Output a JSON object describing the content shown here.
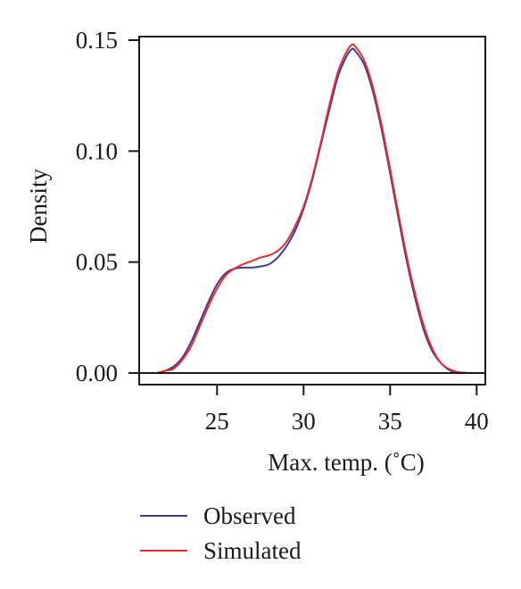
{
  "chart_data": {
    "type": "line",
    "title": "",
    "xlabel": "Max. temp. (˚C)",
    "ylabel": "Density",
    "xlim": [
      20.5,
      40.5
    ],
    "ylim": [
      0,
      0.15
    ],
    "xticks": [
      25,
      30,
      35,
      40
    ],
    "xtick_labels": [
      "25",
      "30",
      "35",
      "40"
    ],
    "yticks": [
      0,
      0.05,
      0.1,
      0.15
    ],
    "ytick_labels": [
      "0.00",
      "0.05",
      "0.10",
      "0.15"
    ],
    "grid": false,
    "legend_position": "bottom",
    "series": [
      {
        "name": "Observed",
        "color": "#3a3aa0",
        "x": [
          21.5,
          22.0,
          22.5,
          23.0,
          23.5,
          24.0,
          24.5,
          25.0,
          25.5,
          26.0,
          26.5,
          27.0,
          27.5,
          28.0,
          28.5,
          29.0,
          29.5,
          30.0,
          30.5,
          31.0,
          31.5,
          32.0,
          32.5,
          32.8,
          33.0,
          33.5,
          34.0,
          34.5,
          35.0,
          35.5,
          36.0,
          36.5,
          37.0,
          37.5,
          38.0,
          38.5,
          39.0,
          39.5
        ],
        "y": [
          0.0,
          0.001,
          0.003,
          0.007,
          0.014,
          0.023,
          0.032,
          0.04,
          0.045,
          0.047,
          0.0475,
          0.0475,
          0.048,
          0.049,
          0.052,
          0.057,
          0.064,
          0.074,
          0.087,
          0.103,
          0.119,
          0.134,
          0.143,
          0.146,
          0.145,
          0.139,
          0.127,
          0.11,
          0.09,
          0.069,
          0.049,
          0.032,
          0.018,
          0.009,
          0.004,
          0.001,
          0.0003,
          0.0
        ]
      },
      {
        "name": "Simulated",
        "color": "#ee2a24",
        "x": [
          21.5,
          22.0,
          22.5,
          23.0,
          23.5,
          24.0,
          24.5,
          25.0,
          25.5,
          26.0,
          26.5,
          27.0,
          27.5,
          28.0,
          28.5,
          29.0,
          29.5,
          30.0,
          30.5,
          31.0,
          31.5,
          32.0,
          32.5,
          32.8,
          33.0,
          33.5,
          34.0,
          34.5,
          35.0,
          35.5,
          36.0,
          36.5,
          37.0,
          37.5,
          38.0,
          38.5,
          39.0,
          39.5
        ],
        "y": [
          0.0,
          0.001,
          0.002,
          0.006,
          0.012,
          0.021,
          0.03,
          0.038,
          0.044,
          0.047,
          0.049,
          0.0505,
          0.052,
          0.053,
          0.055,
          0.059,
          0.066,
          0.075,
          0.088,
          0.104,
          0.121,
          0.136,
          0.145,
          0.148,
          0.147,
          0.141,
          0.129,
          0.112,
          0.092,
          0.071,
          0.051,
          0.034,
          0.02,
          0.01,
          0.004,
          0.0015,
          0.0003,
          0.0
        ]
      }
    ]
  }
}
